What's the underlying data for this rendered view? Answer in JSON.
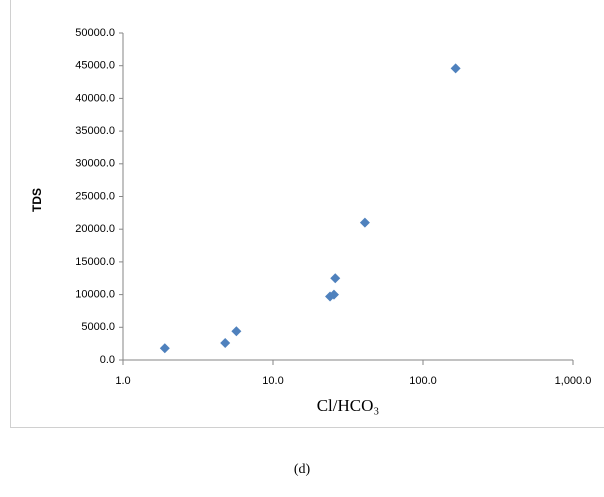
{
  "chart_data": {
    "type": "scatter",
    "x_label": "Cl/HCO₃",
    "y_label": "TDS",
    "caption": "(d)",
    "x": [
      1.9,
      4.8,
      5.7,
      24,
      25.5,
      26,
      41,
      165
    ],
    "series": [
      {
        "color": "#4f81bd",
        "values": [
          1800,
          2600,
          4400,
          9700,
          10000,
          12500,
          21000,
          44600
        ]
      }
    ],
    "x_log": true,
    "xlim": [
      1,
      1000
    ],
    "xticks": [
      {
        "value": 1,
        "label": "1.0"
      },
      {
        "value": 10,
        "label": "10.0"
      },
      {
        "value": 100,
        "label": "100.0"
      },
      {
        "value": 1000,
        "label": "1,000.0"
      }
    ],
    "ylim": [
      0,
      50000
    ],
    "yticks": [
      {
        "value": 0,
        "label": "0.0"
      },
      {
        "value": 5000,
        "label": "5000.0"
      },
      {
        "value": 10000,
        "label": "10000.0"
      },
      {
        "value": 15000,
        "label": "15000.0"
      },
      {
        "value": 20000,
        "label": "20000.0"
      },
      {
        "value": 25000,
        "label": "25000.0"
      },
      {
        "value": 30000,
        "label": "30000.0"
      },
      {
        "value": 35000,
        "label": "35000.0"
      },
      {
        "value": 40000,
        "label": "40000.0"
      },
      {
        "value": 45000,
        "label": "45000.0"
      },
      {
        "value": 50000,
        "label": "50000.0"
      }
    ]
  }
}
